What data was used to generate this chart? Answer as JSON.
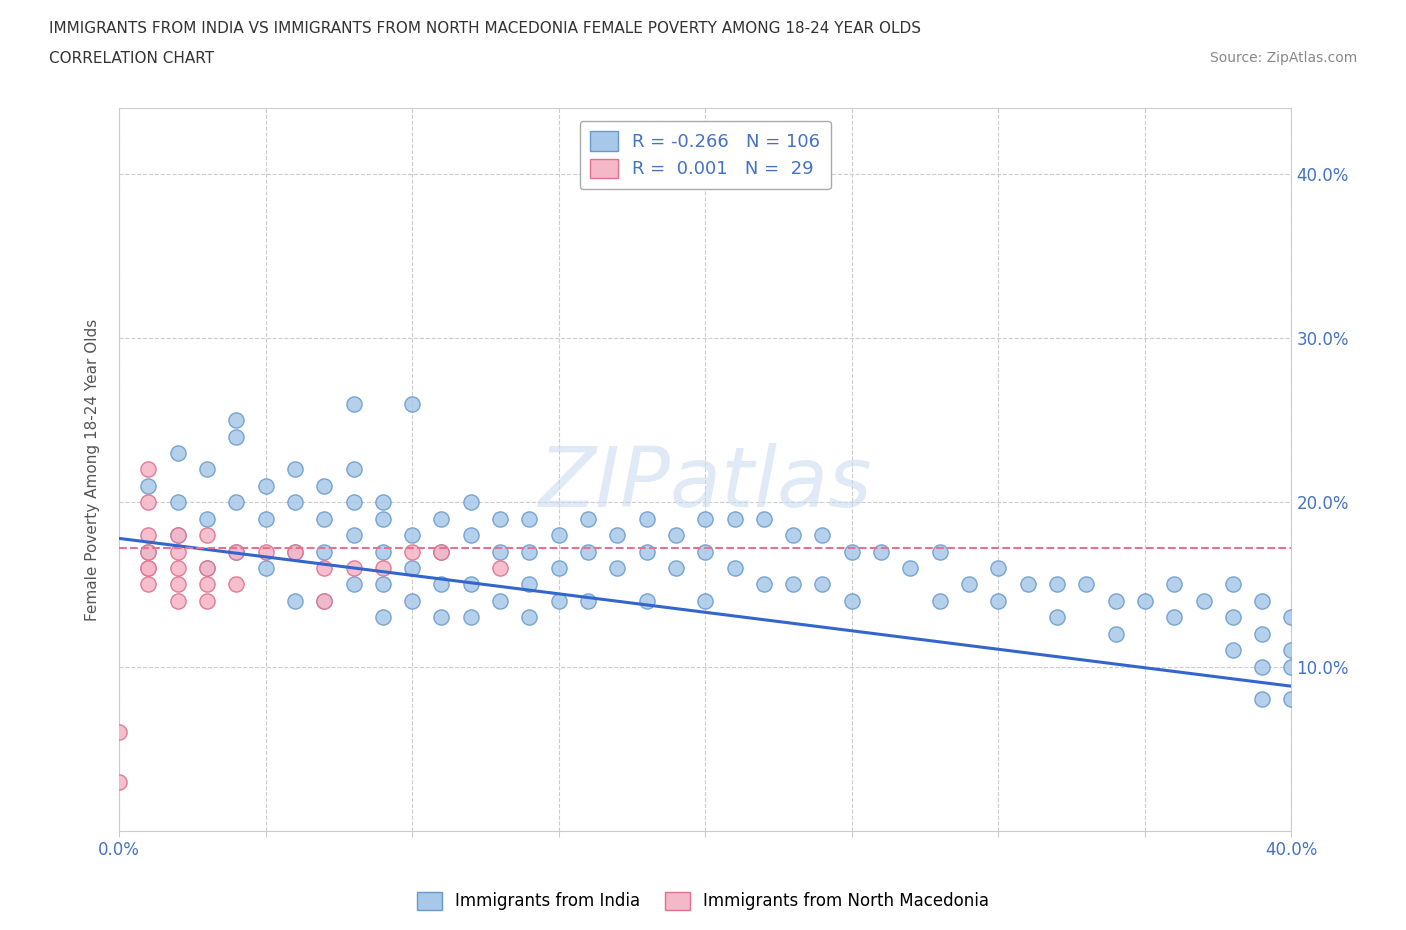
{
  "title_line1": "IMMIGRANTS FROM INDIA VS IMMIGRANTS FROM NORTH MACEDONIA FEMALE POVERTY AMONG 18-24 YEAR OLDS",
  "title_line2": "CORRELATION CHART",
  "source": "Source: ZipAtlas.com",
  "ylabel": "Female Poverty Among 18-24 Year Olds",
  "xlim": [
    0.0,
    0.4
  ],
  "ylim": [
    0.0,
    0.44
  ],
  "india_color": "#A8C8E8",
  "india_edge_color": "#6699CC",
  "macedonia_color": "#F4B8C8",
  "macedonia_edge_color": "#E07090",
  "india_R": -0.266,
  "india_N": 106,
  "macedonia_R": 0.001,
  "macedonia_N": 29,
  "india_line_color": "#3366CC",
  "india_line_start_y": 0.178,
  "india_line_end_y": 0.088,
  "macedonia_line_color": "#E87090",
  "macedonia_line_y": 0.172,
  "grid_color": "#CCCCCC",
  "background_color": "#FFFFFF",
  "watermark": "ZIPatlas",
  "india_scatter_x": [
    0.01,
    0.01,
    0.02,
    0.02,
    0.02,
    0.03,
    0.03,
    0.03,
    0.04,
    0.04,
    0.04,
    0.04,
    0.05,
    0.05,
    0.05,
    0.06,
    0.06,
    0.06,
    0.06,
    0.07,
    0.07,
    0.07,
    0.07,
    0.08,
    0.08,
    0.08,
    0.08,
    0.08,
    0.09,
    0.09,
    0.09,
    0.09,
    0.09,
    0.1,
    0.1,
    0.1,
    0.1,
    0.11,
    0.11,
    0.11,
    0.11,
    0.12,
    0.12,
    0.12,
    0.12,
    0.13,
    0.13,
    0.13,
    0.14,
    0.14,
    0.14,
    0.14,
    0.15,
    0.15,
    0.15,
    0.16,
    0.16,
    0.16,
    0.17,
    0.17,
    0.18,
    0.18,
    0.18,
    0.19,
    0.19,
    0.2,
    0.2,
    0.2,
    0.21,
    0.21,
    0.22,
    0.22,
    0.23,
    0.23,
    0.24,
    0.24,
    0.25,
    0.25,
    0.26,
    0.27,
    0.28,
    0.28,
    0.29,
    0.3,
    0.3,
    0.31,
    0.32,
    0.32,
    0.33,
    0.34,
    0.34,
    0.35,
    0.36,
    0.36,
    0.37,
    0.38,
    0.38,
    0.38,
    0.39,
    0.39,
    0.39,
    0.39,
    0.4,
    0.4,
    0.4,
    0.4
  ],
  "india_scatter_y": [
    0.21,
    0.17,
    0.2,
    0.18,
    0.23,
    0.19,
    0.22,
    0.16,
    0.24,
    0.2,
    0.25,
    0.17,
    0.21,
    0.19,
    0.16,
    0.22,
    0.2,
    0.17,
    0.14,
    0.21,
    0.19,
    0.17,
    0.14,
    0.22,
    0.2,
    0.18,
    0.15,
    0.26,
    0.19,
    0.17,
    0.15,
    0.13,
    0.2,
    0.18,
    0.16,
    0.14,
    0.26,
    0.19,
    0.17,
    0.15,
    0.13,
    0.2,
    0.18,
    0.15,
    0.13,
    0.19,
    0.17,
    0.14,
    0.19,
    0.17,
    0.15,
    0.13,
    0.18,
    0.16,
    0.14,
    0.19,
    0.17,
    0.14,
    0.18,
    0.16,
    0.19,
    0.17,
    0.14,
    0.18,
    0.16,
    0.19,
    0.17,
    0.14,
    0.19,
    0.16,
    0.19,
    0.15,
    0.18,
    0.15,
    0.18,
    0.15,
    0.17,
    0.14,
    0.17,
    0.16,
    0.17,
    0.14,
    0.15,
    0.16,
    0.14,
    0.15,
    0.15,
    0.13,
    0.15,
    0.14,
    0.12,
    0.14,
    0.15,
    0.13,
    0.14,
    0.15,
    0.13,
    0.11,
    0.14,
    0.12,
    0.1,
    0.08,
    0.13,
    0.11,
    0.1,
    0.08
  ],
  "macedonia_scatter_x": [
    0.0,
    0.0,
    0.01,
    0.01,
    0.01,
    0.01,
    0.01,
    0.01,
    0.01,
    0.02,
    0.02,
    0.02,
    0.02,
    0.02,
    0.03,
    0.03,
    0.03,
    0.03,
    0.04,
    0.04,
    0.05,
    0.06,
    0.07,
    0.07,
    0.08,
    0.09,
    0.1,
    0.11,
    0.13
  ],
  "macedonia_scatter_y": [
    0.06,
    0.03,
    0.22,
    0.2,
    0.18,
    0.17,
    0.16,
    0.16,
    0.15,
    0.18,
    0.17,
    0.16,
    0.15,
    0.14,
    0.18,
    0.16,
    0.15,
    0.14,
    0.17,
    0.15,
    0.17,
    0.17,
    0.16,
    0.14,
    0.16,
    0.16,
    0.17,
    0.17,
    0.16
  ]
}
